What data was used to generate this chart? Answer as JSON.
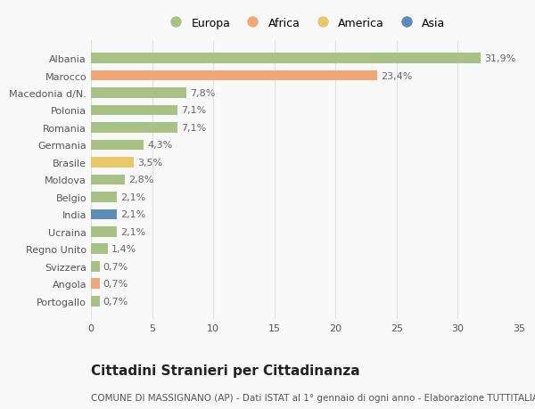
{
  "countries": [
    "Albania",
    "Marocco",
    "Macedonia d/N.",
    "Polonia",
    "Romania",
    "Germania",
    "Brasile",
    "Moldova",
    "Belgio",
    "India",
    "Ucraina",
    "Regno Unito",
    "Svizzera",
    "Angola",
    "Portogallo"
  ],
  "values": [
    31.9,
    23.4,
    7.8,
    7.1,
    7.1,
    4.3,
    3.5,
    2.8,
    2.1,
    2.1,
    2.1,
    1.4,
    0.7,
    0.7,
    0.7
  ],
  "labels": [
    "31,9%",
    "23,4%",
    "7,8%",
    "7,1%",
    "7,1%",
    "4,3%",
    "3,5%",
    "2,8%",
    "2,1%",
    "2,1%",
    "2,1%",
    "1,4%",
    "0,7%",
    "0,7%",
    "0,7%"
  ],
  "continents": [
    "Europa",
    "Africa",
    "Europa",
    "Europa",
    "Europa",
    "Europa",
    "America",
    "Europa",
    "Europa",
    "Asia",
    "Europa",
    "Europa",
    "Europa",
    "Africa",
    "Europa"
  ],
  "colors": {
    "Europa": "#a8c285",
    "Africa": "#f0a877",
    "America": "#e8c86a",
    "Asia": "#5b8db8"
  },
  "xlim": [
    0,
    35
  ],
  "xticks": [
    0,
    5,
    10,
    15,
    20,
    25,
    30,
    35
  ],
  "title": "Cittadini Stranieri per Cittadinanza",
  "subtitle": "COMUNE DI MASSIGNANO (AP) - Dati ISTAT al 1° gennaio di ogni anno - Elaborazione TUTTITALIA.IT",
  "background_color": "#f9f9f9",
  "grid_color": "#e0e0e0",
  "bar_height": 0.6,
  "title_fontsize": 11,
  "subtitle_fontsize": 7.5,
  "label_fontsize": 8,
  "tick_fontsize": 8,
  "legend_fontsize": 9
}
